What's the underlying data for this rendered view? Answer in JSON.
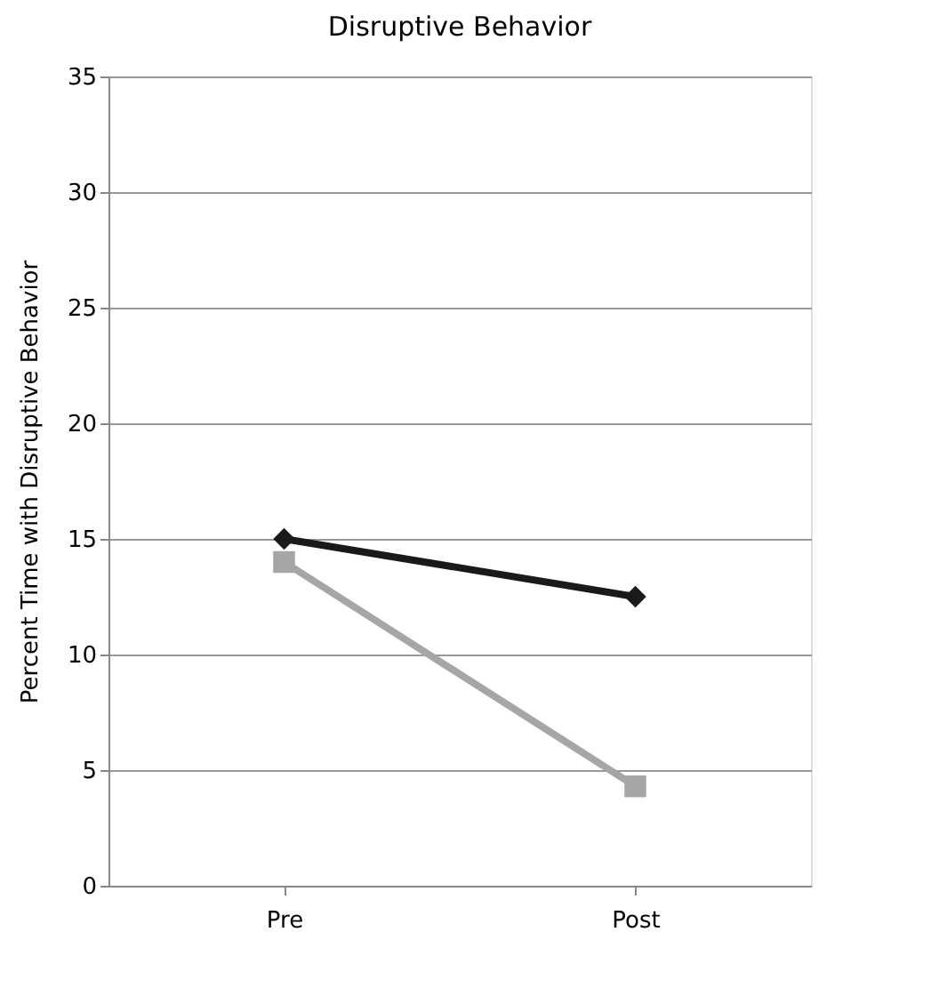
{
  "chart_data": {
    "type": "line",
    "title": "Disruptive Behavior",
    "ylabel": "Percent Time with Disruptive Behavior",
    "categories": [
      "Pre",
      "Post"
    ],
    "series": [
      {
        "color": "#1a1a1a",
        "values": [
          15,
          12.5
        ],
        "marker": "diamond"
      },
      {
        "color": "#a6a6a6",
        "values": [
          14,
          4.3
        ],
        "marker": "square"
      }
    ],
    "ylim": [
      0,
      35
    ],
    "yticks": [
      0,
      5,
      10,
      15,
      20,
      25,
      30,
      35
    ],
    "grid": "y",
    "line_style": "solid"
  }
}
